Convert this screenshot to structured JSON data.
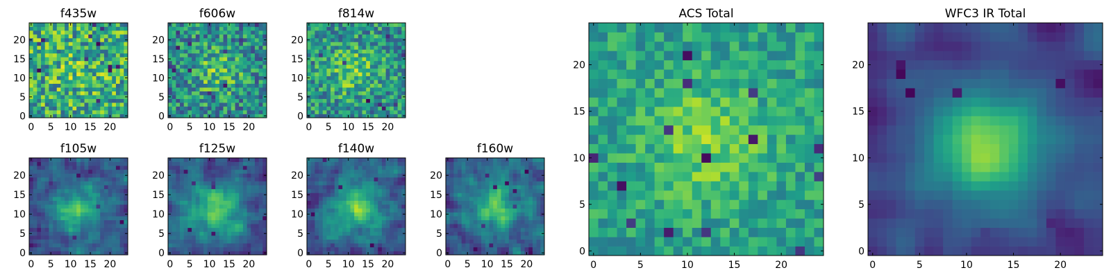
{
  "chart_data": [
    {
      "type": "heatmap",
      "title": "f435w",
      "xlim": [
        0,
        24
      ],
      "ylim": [
        0,
        24
      ],
      "xticks": [
        "0",
        "5",
        "10",
        "15",
        "20"
      ],
      "yticks": [
        "0",
        "5",
        "10",
        "15",
        "20"
      ],
      "colormap": "viridis",
      "grid": false,
      "seed": 11,
      "center": [
        12,
        12
      ],
      "center_strength": 0.12,
      "noise": 0.9,
      "blur": 0,
      "clamp": [
        0.3,
        1.0
      ],
      "dark_count": 12
    },
    {
      "type": "heatmap",
      "title": "f606w",
      "xlim": [
        0,
        24
      ],
      "ylim": [
        0,
        24
      ],
      "xticks": [
        "0",
        "5",
        "10",
        "15",
        "20"
      ],
      "yticks": [
        "0",
        "5",
        "10",
        "15",
        "20"
      ],
      "colormap": "viridis",
      "grid": false,
      "seed": 23,
      "center": [
        12,
        12
      ],
      "center_strength": 0.3,
      "noise": 0.7,
      "blur": 0,
      "clamp": [
        0.2,
        1.0
      ],
      "dark_count": 12
    },
    {
      "type": "heatmap",
      "title": "f814w",
      "xlim": [
        0,
        24
      ],
      "ylim": [
        0,
        24
      ],
      "xticks": [
        "0",
        "5",
        "10",
        "15",
        "20"
      ],
      "yticks": [
        "0",
        "5",
        "10",
        "15",
        "20"
      ],
      "colormap": "viridis",
      "grid": false,
      "seed": 37,
      "center": [
        11,
        12
      ],
      "center_strength": 0.3,
      "noise": 0.7,
      "blur": 0,
      "clamp": [
        0.25,
        1.0
      ],
      "dark_count": 8
    },
    {
      "type": "heatmap",
      "title": "f105w",
      "xlim": [
        0,
        24
      ],
      "ylim": [
        0,
        24
      ],
      "xticks": [
        "0",
        "5",
        "10",
        "15",
        "20"
      ],
      "yticks": [
        "0",
        "5",
        "10",
        "15",
        "20"
      ],
      "colormap": "viridis",
      "grid": false,
      "seed": 41,
      "center": [
        12,
        11
      ],
      "center_strength": 0.45,
      "noise": 0.45,
      "blur": 1,
      "clamp": [
        0.0,
        1.0
      ],
      "dark_count": 8
    },
    {
      "type": "heatmap",
      "title": "f125w",
      "xlim": [
        0,
        24
      ],
      "ylim": [
        0,
        24
      ],
      "xticks": [
        "0",
        "5",
        "10",
        "15",
        "20"
      ],
      "yticks": [
        "0",
        "5",
        "10",
        "15",
        "20"
      ],
      "colormap": "viridis",
      "grid": false,
      "seed": 53,
      "center": [
        12,
        11
      ],
      "center_strength": 0.45,
      "noise": 0.45,
      "blur": 1,
      "clamp": [
        0.0,
        1.0
      ],
      "dark_count": 8
    },
    {
      "type": "heatmap",
      "title": "f140w",
      "xlim": [
        0,
        24
      ],
      "ylim": [
        0,
        24
      ],
      "xticks": [
        "0",
        "5",
        "10",
        "15",
        "20"
      ],
      "yticks": [
        "0",
        "5",
        "10",
        "15",
        "20"
      ],
      "colormap": "viridis",
      "grid": false,
      "seed": 67,
      "center": [
        12,
        12
      ],
      "center_strength": 0.45,
      "noise": 0.45,
      "blur": 1,
      "clamp": [
        0.0,
        1.0
      ],
      "dark_count": 7
    },
    {
      "type": "heatmap",
      "title": "f160w",
      "xlim": [
        0,
        24
      ],
      "ylim": [
        0,
        24
      ],
      "xticks": [
        "0",
        "5",
        "10",
        "15",
        "20"
      ],
      "yticks": [
        "0",
        "5",
        "10",
        "15",
        "20"
      ],
      "colormap": "viridis",
      "grid": false,
      "seed": 79,
      "center": [
        12,
        12
      ],
      "center_strength": 0.45,
      "noise": 0.5,
      "blur": 1,
      "clamp": [
        0.0,
        1.0
      ],
      "dark_count": 10
    },
    {
      "type": "heatmap",
      "title": "ACS Total",
      "xlim": [
        0,
        24
      ],
      "ylim": [
        0,
        24
      ],
      "xticks": [
        "0",
        "5",
        "10",
        "15",
        "20"
      ],
      "yticks": [
        "0",
        "5",
        "10",
        "15",
        "20"
      ],
      "colormap": "viridis",
      "grid": false,
      "seed": 97,
      "center": [
        12,
        12
      ],
      "center_strength": 0.35,
      "noise": 0.5,
      "blur": 0,
      "clamp": [
        0.35,
        1.0
      ],
      "dark_count": 14
    },
    {
      "type": "heatmap",
      "title": "WFC3 IR Total",
      "xlim": [
        0,
        24
      ],
      "ylim": [
        0,
        24
      ],
      "xticks": [
        "0",
        "5",
        "10",
        "15",
        "20"
      ],
      "yticks": [
        "0",
        "5",
        "10",
        "15",
        "20"
      ],
      "colormap": "viridis",
      "grid": false,
      "seed": 113,
      "center": [
        12,
        11
      ],
      "center_strength": 0.6,
      "noise": 0.3,
      "blur": 2,
      "clamp": [
        0.0,
        1.0
      ],
      "dark_count": 9
    }
  ]
}
